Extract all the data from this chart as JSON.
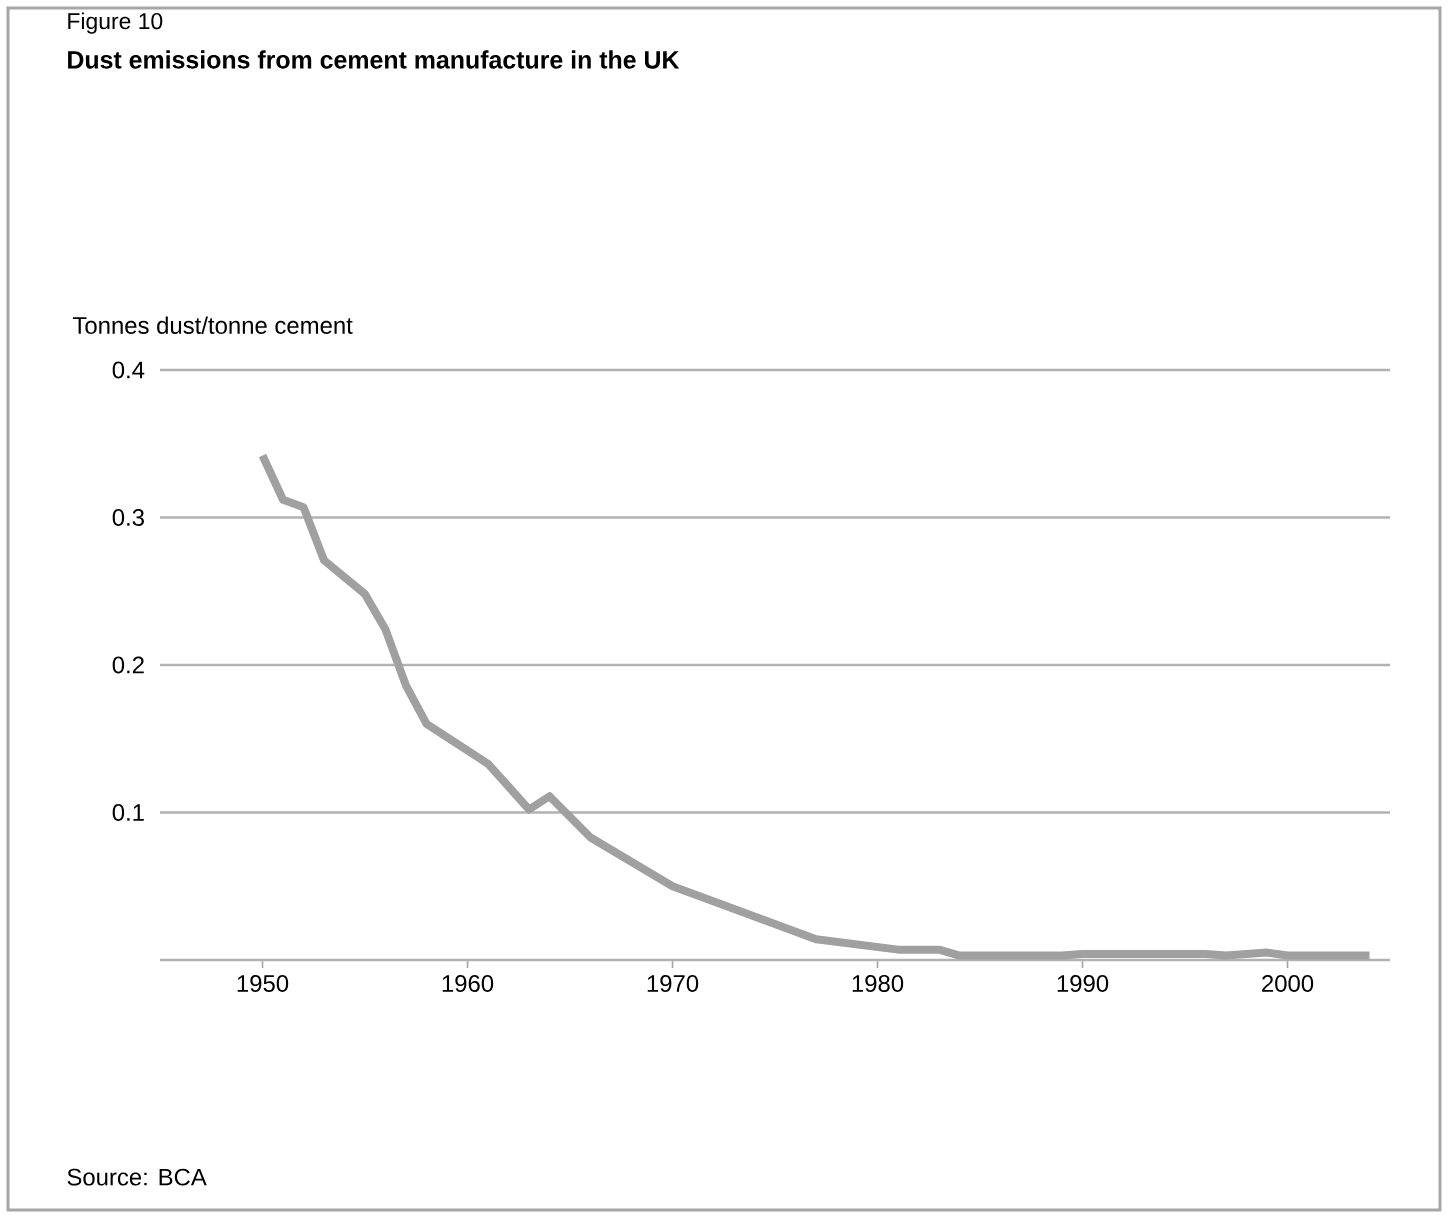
{
  "chart_data": {
    "type": "line",
    "title": "Dust emissions from cement manufacture in the UK",
    "subtitle": "Figure 10",
    "ylabel": "Tonnes dust/tonne cement",
    "annotations": [
      "Source: BCA"
    ],
    "x": [
      1950,
      1951,
      1952,
      1953,
      1955,
      1956,
      1957,
      1958,
      1961,
      1963,
      1964,
      1966,
      1970,
      1977,
      1981,
      1983,
      1984,
      1989,
      1990,
      1996,
      1997,
      1999,
      2000,
      2004
    ],
    "series": [
      {
        "color": "#a0a0a0",
        "values": [
          0.342,
          0.312,
          0.307,
          0.271,
          0.248,
          0.224,
          0.186,
          0.16,
          0.133,
          0.102,
          0.111,
          0.083,
          0.05,
          0.014,
          0.007,
          0.007,
          0.003,
          0.003,
          0.004,
          0.004,
          0.003,
          0.005,
          0.003,
          0.003
        ]
      }
    ],
    "xlim": [
      1945,
      2005
    ],
    "ylim": [
      0,
      0.4
    ],
    "xticks": [
      1950,
      1960,
      1970,
      1980,
      1990,
      2000
    ],
    "yticks": [
      0.1,
      0.2,
      0.3,
      0.4
    ],
    "grid": "y",
    "marker": "none",
    "line_style": "solid"
  }
}
